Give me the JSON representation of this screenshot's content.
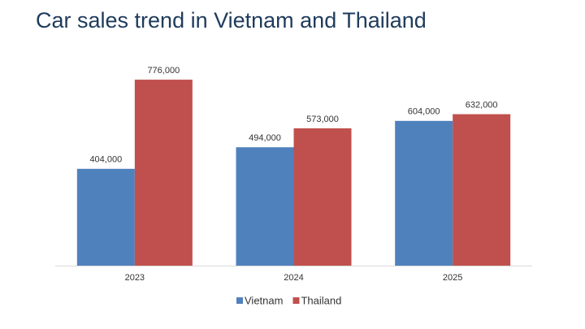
{
  "chart_data": {
    "type": "bar",
    "title": "Car sales trend in Vietnam and Thailand",
    "categories": [
      "2023",
      "2024",
      "2025"
    ],
    "series": [
      {
        "name": "Vietnam",
        "color": "#4f81bd",
        "values": [
          404000,
          494000,
          604000
        ],
        "value_labels": [
          "404,000",
          "494,000",
          "604,000"
        ]
      },
      {
        "name": "Thailand",
        "color": "#c0504d",
        "values": [
          776000,
          573000,
          632000
        ],
        "value_labels": [
          "776,000",
          "573,000",
          "632,000"
        ]
      }
    ],
    "ylim": [
      0,
      800000
    ],
    "legend": "bottom"
  }
}
